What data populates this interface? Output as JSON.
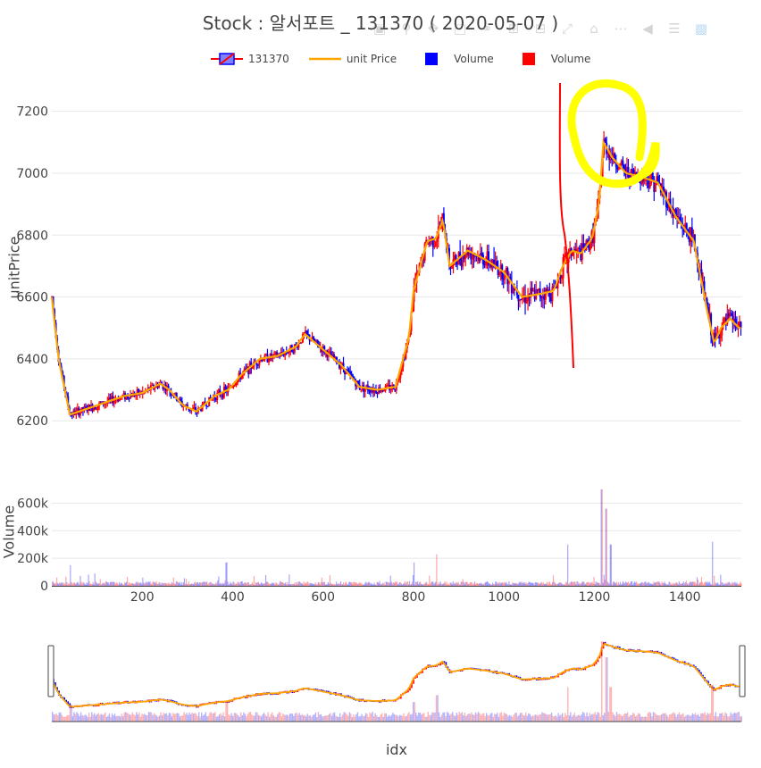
{
  "title": "Stock :  알서포트 _ 131370 ( 2020-05-07 )",
  "legend": [
    {
      "name": "131370",
      "kind": "candle",
      "inc_color": "#ff0000",
      "dec_color": "#0000ff"
    },
    {
      "name": "unit Price",
      "kind": "line",
      "color": "#ffa500"
    },
    {
      "name": "Volume",
      "kind": "square",
      "color": "#0000ff"
    },
    {
      "name": "Volume",
      "kind": "square",
      "color": "#ff0000"
    }
  ],
  "modebar_icons": [
    "camera-icon",
    "zoom-icon",
    "pan-icon",
    "select-icon",
    "lasso-icon",
    "zoom-in-icon",
    "zoom-out-icon",
    "autoscale-icon",
    "home-icon",
    "spike-icon",
    "hover-closest-icon",
    "hover-compare-icon",
    "plotly-logo-icon"
  ],
  "chart_data": {
    "type": "candlestick",
    "xlabel": "idx",
    "price_panel": {
      "ylabel": "unitPrice",
      "ylim": [
        6140,
        7300
      ],
      "y_ticks": [
        6200,
        6400,
        6600,
        6800,
        7000,
        7200
      ],
      "idx": [
        0,
        15,
        40,
        80,
        120,
        160,
        200,
        240,
        260,
        290,
        320,
        360,
        390,
        420,
        460,
        500,
        540,
        560,
        600,
        640,
        680,
        720,
        760,
        790,
        800,
        815,
        830,
        850,
        865,
        880,
        920,
        960,
        1000,
        1040,
        1080,
        1110,
        1130,
        1150,
        1170,
        1195,
        1210,
        1220,
        1240,
        1270,
        1300,
        1340,
        1380,
        1420,
        1450,
        1465,
        1480,
        1500,
        1520
      ],
      "price": [
        6600,
        6400,
        6220,
        6240,
        6260,
        6280,
        6290,
        6320,
        6300,
        6250,
        6230,
        6280,
        6300,
        6350,
        6400,
        6410,
        6440,
        6480,
        6430,
        6380,
        6310,
        6300,
        6310,
        6470,
        6620,
        6700,
        6780,
        6790,
        6850,
        6700,
        6750,
        6720,
        6680,
        6600,
        6610,
        6620,
        6700,
        6750,
        6740,
        6790,
        6900,
        7100,
        7050,
        7000,
        6990,
        6970,
        6860,
        6780,
        6550,
        6450,
        6500,
        6530,
        6500
      ],
      "annotations": [
        "freehand yellow circle near peak (idx ~1230)",
        "freehand red vertical line (idx ~1130)"
      ]
    },
    "volume_panel": {
      "ylabel": "Volume",
      "ylim": [
        0,
        700000
      ],
      "y_ticks": [
        0,
        200000,
        400000,
        600000
      ],
      "y_tick_labels": [
        "0",
        "200k",
        "400k",
        "600k"
      ],
      "spikes": [
        {
          "idx": 40,
          "value": 150000
        },
        {
          "idx": 385,
          "value": 170000
        },
        {
          "idx": 800,
          "value": 170000
        },
        {
          "idx": 850,
          "value": 230000
        },
        {
          "idx": 1140,
          "value": 300000
        },
        {
          "idx": 1215,
          "value": 700000
        },
        {
          "idx": 1225,
          "value": 560000
        },
        {
          "idx": 1235,
          "value": 300000
        },
        {
          "idx": 1460,
          "value": 320000
        }
      ]
    },
    "x_ticks": [
      200,
      400,
      600,
      800,
      1000,
      1200,
      1400
    ],
    "xlim": [
      0,
      1525
    ]
  }
}
